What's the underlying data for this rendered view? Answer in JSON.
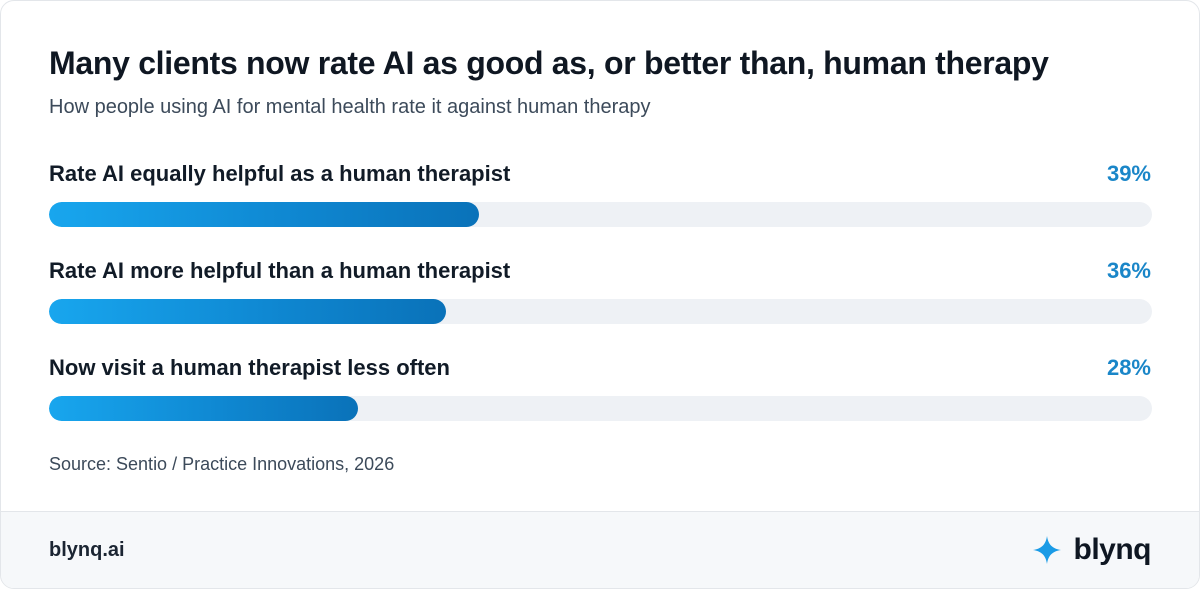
{
  "chart_data": {
    "type": "bar",
    "orientation": "horizontal",
    "title": "Many clients now rate AI as good as, or better than, human therapy",
    "subtitle": "How people using AI for mental health rate it against human therapy",
    "categories": [
      "Rate AI equally helpful as a human therapist",
      "Rate AI more helpful than a human therapist",
      "Now visit a human therapist less often"
    ],
    "values": [
      39,
      36,
      28
    ],
    "value_labels": [
      "39%",
      "36%",
      "28%"
    ],
    "xlim": [
      0,
      100
    ],
    "unit": "%",
    "grid": false,
    "bar_color": "#1a8fd6",
    "track_color": "#eef1f5",
    "value_color": "#1a86c8"
  },
  "source": "Source: Sentio / Practice Innovations, 2026",
  "footer": {
    "url": "blynq.ai",
    "brand_name": "blynq",
    "brand_icon": "sparkle-icon",
    "brand_icon_color": "#1a9be6"
  }
}
